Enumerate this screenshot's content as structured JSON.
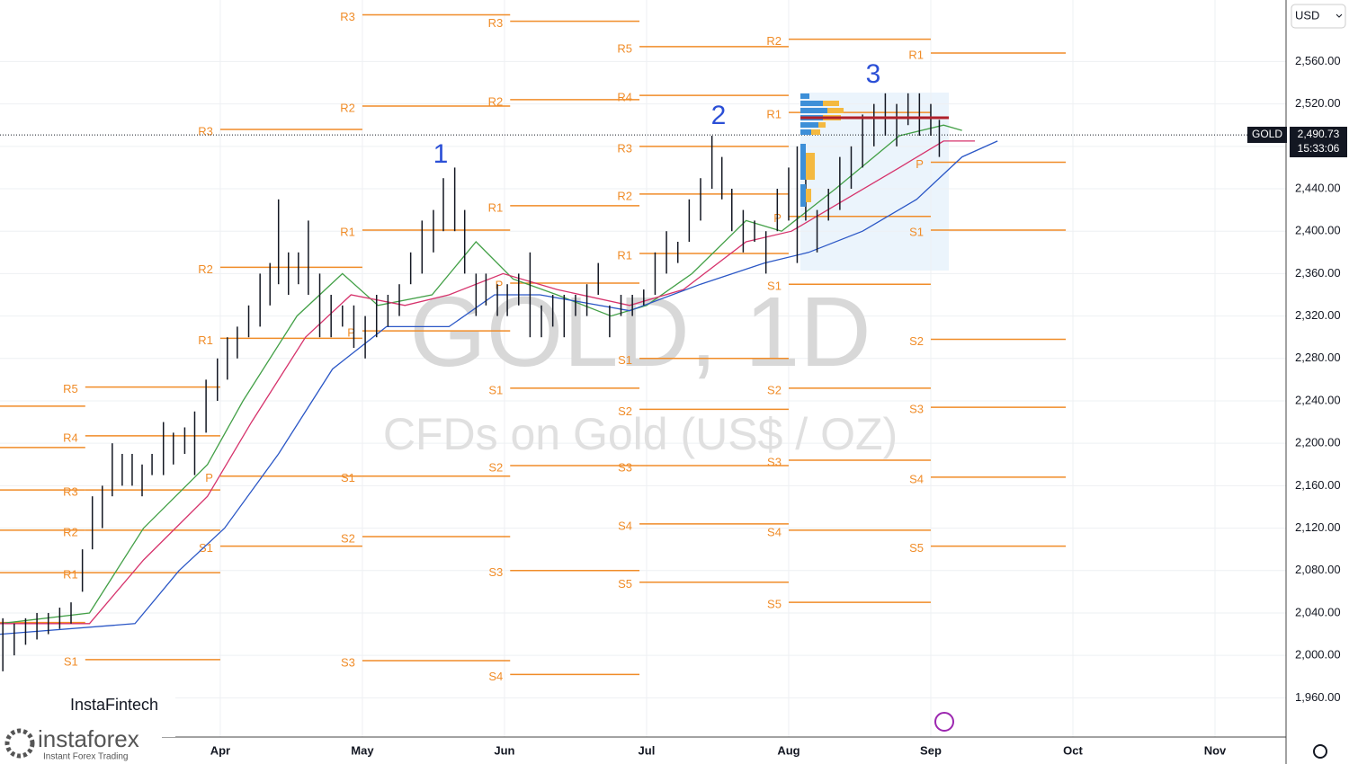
{
  "chart_data": {
    "type": "ohlc",
    "ylim": [
      1923,
      2618
    ],
    "yticks": [
      {
        "value": 1960,
        "label": "1,960.00"
      },
      {
        "value": 2000,
        "label": "2,000.00"
      },
      {
        "value": 2040,
        "label": "2,040.00"
      },
      {
        "value": 2080,
        "label": "2,080.00"
      },
      {
        "value": 2120,
        "label": "2,120.00"
      },
      {
        "value": 2160,
        "label": "2,160.00"
      },
      {
        "value": 2200,
        "label": "2,200.00"
      },
      {
        "value": 2240,
        "label": "2,240.00"
      },
      {
        "value": 2280,
        "label": "2,280.00"
      },
      {
        "value": 2320,
        "label": "2,320.00"
      },
      {
        "value": 2360,
        "label": "2,360.00"
      },
      {
        "value": 2400,
        "label": "2,400.00"
      },
      {
        "value": 2440,
        "label": "2,440.00"
      },
      {
        "value": 2480,
        "label": "2,480.00"
      },
      {
        "value": 2520,
        "label": "2,520.00"
      },
      {
        "value": 2560,
        "label": "2,560.00"
      }
    ],
    "xlim": [
      2.45,
      11.5
    ],
    "xticks": [
      {
        "value": 4,
        "label": "Apr"
      },
      {
        "value": 5,
        "label": "May"
      },
      {
        "value": 6,
        "label": "Jun"
      },
      {
        "value": 7,
        "label": "Jul"
      },
      {
        "value": 8,
        "label": "Aug"
      },
      {
        "value": 9,
        "label": "Sep"
      },
      {
        "value": 10,
        "label": "Oct"
      },
      {
        "value": 11,
        "label": "Nov"
      }
    ],
    "grid": true,
    "currency": "USD",
    "symbol": "GOLD",
    "last_price": {
      "value": 2490.73,
      "label": "2,490.73"
    },
    "countdown": "15:33:06",
    "watermark": {
      "title": "GOLD, 1D",
      "subtitle": "CFDs on Gold (US$ / OZ)"
    },
    "annotations": [
      "1",
      "2",
      "3"
    ],
    "bar_color": "#131722",
    "bars": [
      [
        2.47,
        1985,
        2035
      ],
      [
        2.55,
        2000,
        2030
      ],
      [
        2.63,
        2010,
        2035
      ],
      [
        2.71,
        2015,
        2040
      ],
      [
        2.79,
        2020,
        2040
      ],
      [
        2.87,
        2025,
        2045
      ],
      [
        2.95,
        2030,
        2050
      ],
      [
        3.03,
        2060,
        2100
      ],
      [
        3.1,
        2100,
        2150
      ],
      [
        3.17,
        2120,
        2160
      ],
      [
        3.24,
        2150,
        2200
      ],
      [
        3.31,
        2160,
        2190
      ],
      [
        3.38,
        2160,
        2190
      ],
      [
        3.45,
        2150,
        2180
      ],
      [
        3.52,
        2170,
        2190
      ],
      [
        3.6,
        2170,
        2220
      ],
      [
        3.67,
        2180,
        2210
      ],
      [
        3.75,
        2190,
        2215
      ],
      [
        3.82,
        2170,
        2230
      ],
      [
        3.9,
        2210,
        2260
      ],
      [
        3.98,
        2240,
        2280
      ],
      [
        4.05,
        2260,
        2300
      ],
      [
        4.12,
        2280,
        2310
      ],
      [
        4.2,
        2300,
        2330
      ],
      [
        4.28,
        2310,
        2360
      ],
      [
        4.35,
        2330,
        2370
      ],
      [
        4.41,
        2350,
        2430
      ],
      [
        4.48,
        2340,
        2380
      ],
      [
        4.55,
        2350,
        2380
      ],
      [
        4.62,
        2340,
        2410
      ],
      [
        4.7,
        2300,
        2360
      ],
      [
        4.78,
        2300,
        2340
      ],
      [
        4.86,
        2310,
        2330
      ],
      [
        4.94,
        2290,
        2330
      ],
      [
        5.02,
        2280,
        2320
      ],
      [
        5.1,
        2300,
        2340
      ],
      [
        5.18,
        2310,
        2340
      ],
      [
        5.26,
        2320,
        2350
      ],
      [
        5.34,
        2350,
        2380
      ],
      [
        5.42,
        2360,
        2410
      ],
      [
        5.5,
        2380,
        2420
      ],
      [
        5.57,
        2400,
        2450
      ],
      [
        5.65,
        2400,
        2460
      ],
      [
        5.72,
        2360,
        2420
      ],
      [
        5.8,
        2320,
        2360
      ],
      [
        5.87,
        2330,
        2360
      ],
      [
        5.95,
        2320,
        2350
      ],
      [
        6.02,
        2320,
        2350
      ],
      [
        6.1,
        2330,
        2360
      ],
      [
        6.18,
        2300,
        2380
      ],
      [
        6.26,
        2300,
        2330
      ],
      [
        6.34,
        2310,
        2340
      ],
      [
        6.42,
        2300,
        2340
      ],
      [
        6.5,
        2320,
        2340
      ],
      [
        6.58,
        2320,
        2350
      ],
      [
        6.66,
        2340,
        2370
      ],
      [
        6.74,
        2300,
        2330
      ],
      [
        6.82,
        2320,
        2340
      ],
      [
        6.9,
        2320,
        2340
      ],
      [
        6.98,
        2330,
        2345
      ],
      [
        7.06,
        2340,
        2380
      ],
      [
        7.14,
        2360,
        2400
      ],
      [
        7.22,
        2370,
        2390
      ],
      [
        7.3,
        2390,
        2430
      ],
      [
        7.38,
        2410,
        2450
      ],
      [
        7.46,
        2440,
        2490
      ],
      [
        7.53,
        2430,
        2470
      ],
      [
        7.6,
        2400,
        2440
      ],
      [
        7.68,
        2380,
        2420
      ],
      [
        7.76,
        2390,
        2410
      ],
      [
        7.84,
        2360,
        2400
      ],
      [
        7.92,
        2400,
        2440
      ],
      [
        8.0,
        2410,
        2460
      ],
      [
        8.06,
        2370,
        2480
      ],
      [
        8.12,
        2410,
        2450
      ],
      [
        8.2,
        2380,
        2420
      ],
      [
        8.28,
        2410,
        2440
      ],
      [
        8.36,
        2420,
        2470
      ],
      [
        8.44,
        2440,
        2480
      ],
      [
        8.52,
        2460,
        2510
      ],
      [
        8.6,
        2480,
        2520
      ],
      [
        8.68,
        2490,
        2530
      ],
      [
        8.76,
        2480,
        2520
      ],
      [
        8.84,
        2500,
        2530
      ],
      [
        8.92,
        2490,
        2530
      ],
      [
        9.0,
        2490,
        2520
      ],
      [
        9.06,
        2470,
        2505
      ]
    ],
    "series": [
      {
        "color": "#43a047",
        "x": [
          2.45,
          3.08,
          3.46,
          3.91,
          4.16,
          4.54,
          4.86,
          5.11,
          5.49,
          5.8,
          6.06,
          6.37,
          6.75,
          7.0,
          7.32,
          7.7,
          7.95,
          8.33,
          8.78,
          9.09,
          9.22
        ],
        "values": [
          2030,
          2040,
          2120,
          2180,
          2240,
          2320,
          2360,
          2330,
          2340,
          2390,
          2355,
          2340,
          2320,
          2330,
          2360,
          2410,
          2400,
          2440,
          2490,
          2500,
          2495
        ]
      },
      {
        "color": "#d6336c",
        "x": [
          2.45,
          3.08,
          3.46,
          3.91,
          4.22,
          4.6,
          4.92,
          5.3,
          5.61,
          5.99,
          6.37,
          6.88,
          7.26,
          7.7,
          8.02,
          8.4,
          8.78,
          9.09,
          9.31
        ],
        "values": [
          2030,
          2030,
          2090,
          2150,
          2220,
          2300,
          2340,
          2330,
          2340,
          2360,
          2345,
          2330,
          2345,
          2390,
          2400,
          2430,
          2460,
          2485,
          2485
        ]
      },
      {
        "color": "#2b57c6",
        "x": [
          2.45,
          3.4,
          3.71,
          4.03,
          4.41,
          4.79,
          5.17,
          5.61,
          5.93,
          6.25,
          6.88,
          7.38,
          7.83,
          8.14,
          8.52,
          8.9,
          9.22,
          9.47
        ],
        "values": [
          2020,
          2030,
          2080,
          2120,
          2190,
          2270,
          2310,
          2310,
          2340,
          2340,
          2325,
          2350,
          2370,
          2380,
          2400,
          2430,
          2470,
          2485
        ]
      }
    ],
    "pivot_color": "#f08c28",
    "pivots": [
      {
        "x0": 2.45,
        "x1": 3.05,
        "levels": [
          [
            "R5",
            2235
          ],
          [
            "R4",
            2196
          ],
          [
            "R3",
            2156
          ],
          [
            "R2",
            2118
          ],
          [
            "R1",
            2078
          ],
          [
            "P",
            2031
          ]
        ]
      },
      {
        "x0": 3.05,
        "x1": 4.0,
        "levels": [
          [
            "R5",
            2253
          ],
          [
            "R4",
            2207
          ],
          [
            "R3",
            2156
          ],
          [
            "R2",
            2118
          ],
          [
            "R1",
            2078
          ],
          [
            "S1",
            1996
          ]
        ]
      },
      {
        "x0": 4.0,
        "x1": 5.0,
        "levels": [
          [
            "R3",
            2496
          ],
          [
            "R2",
            2366
          ],
          [
            "R1",
            2299
          ],
          [
            "P",
            2169
          ],
          [
            "S1",
            2103
          ]
        ]
      },
      {
        "x0": 5.0,
        "x1": 6.04,
        "levels": [
          [
            "R3",
            2604
          ],
          [
            "R2",
            2518
          ],
          [
            "R1",
            2401
          ],
          [
            "P",
            2306
          ],
          [
            "S1",
            2169
          ],
          [
            "S2",
            2112
          ],
          [
            "S3",
            1995
          ]
        ]
      },
      {
        "x0": 6.04,
        "x1": 6.95,
        "levels": [
          [
            "R3",
            2598
          ],
          [
            "R2",
            2524
          ],
          [
            "R1",
            2424
          ],
          [
            "P",
            2351
          ],
          [
            "S1",
            2252
          ],
          [
            "S2",
            2179
          ],
          [
            "S3",
            2080
          ],
          [
            "S4",
            1982
          ]
        ]
      },
      {
        "x0": 6.95,
        "x1": 8.0,
        "levels": [
          [
            "R5",
            2574
          ],
          [
            "R4",
            2528
          ],
          [
            "R3",
            2480
          ],
          [
            "R2",
            2435
          ],
          [
            "R1",
            2379
          ],
          [
            "S1",
            2280
          ],
          [
            "S2",
            2232
          ],
          [
            "S3",
            2179
          ],
          [
            "S4",
            2124
          ],
          [
            "S5",
            2069
          ]
        ]
      },
      {
        "x0": 8.0,
        "x1": 9.0,
        "levels": [
          [
            "R2",
            2581
          ],
          [
            "R1",
            2512
          ],
          [
            "P",
            2414
          ],
          [
            "S1",
            2350
          ],
          [
            "S2",
            2252
          ],
          [
            "S3",
            2184
          ],
          [
            "S4",
            2118
          ],
          [
            "S5",
            2050
          ]
        ]
      },
      {
        "x0": 9.0,
        "x1": 9.95,
        "levels": [
          [
            "R1",
            2568
          ],
          [
            "P",
            2465
          ],
          [
            "S1",
            2401
          ],
          [
            "S2",
            2298
          ],
          [
            "S3",
            2234
          ],
          [
            "S4",
            2168
          ],
          [
            "S5",
            2103
          ]
        ]
      }
    ]
  },
  "branding": {
    "left": "InstaFintech",
    "logo": "instaforex",
    "tagline": "Instant Forex Trading"
  }
}
